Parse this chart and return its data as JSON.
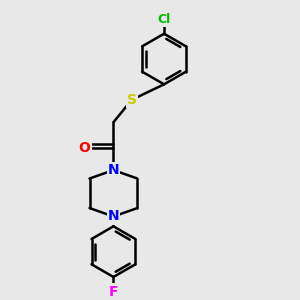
{
  "bg_color": "#e8e8e8",
  "bond_color": "#000000",
  "atom_colors": {
    "O": "#ff0000",
    "S": "#cccc00",
    "N": "#0000ff",
    "Cl": "#00bb00",
    "F": "#ff00ff",
    "C": "#000000"
  },
  "figsize": [
    3.0,
    3.0
  ],
  "dpi": 100
}
